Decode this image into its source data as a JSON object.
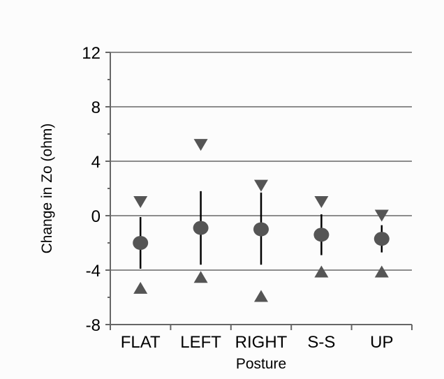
{
  "chart_data": {
    "type": "scatter",
    "title": "",
    "xlabel": "Posture",
    "ylabel": "Change in Zo (ohm)",
    "categories": [
      "FLAT",
      "LEFT",
      "RIGHT",
      "S-S",
      "UP"
    ],
    "ylim": [
      -8,
      12
    ],
    "y_major_ticks": [
      -8,
      -4,
      0,
      4,
      8,
      12
    ],
    "y_tick_labels": [
      "-8",
      "-4",
      "0",
      "4",
      "8",
      "12"
    ],
    "y_minor_step": 2,
    "grid": true,
    "legend": "none",
    "series": [
      {
        "marker": "circle",
        "values": [
          -2.0,
          -0.9,
          -1.0,
          -1.4,
          -1.7
        ]
      },
      {
        "marker": "error-bar",
        "low": [
          -3.9,
          -3.6,
          -3.6,
          -2.9,
          -2.7
        ],
        "high": [
          -0.1,
          1.8,
          1.7,
          0.1,
          -0.7
        ]
      },
      {
        "marker": "triangle-down",
        "values": [
          1.0,
          5.2,
          2.2,
          1.0,
          0.0
        ]
      },
      {
        "marker": "triangle-up",
        "values": [
          -5.3,
          -4.5,
          -5.9,
          -4.1,
          -4.1
        ]
      }
    ],
    "colors": {
      "marker": "#555555",
      "errorbar": "#000000",
      "gridline": "#8c8c8c",
      "axis": "#666666"
    }
  }
}
